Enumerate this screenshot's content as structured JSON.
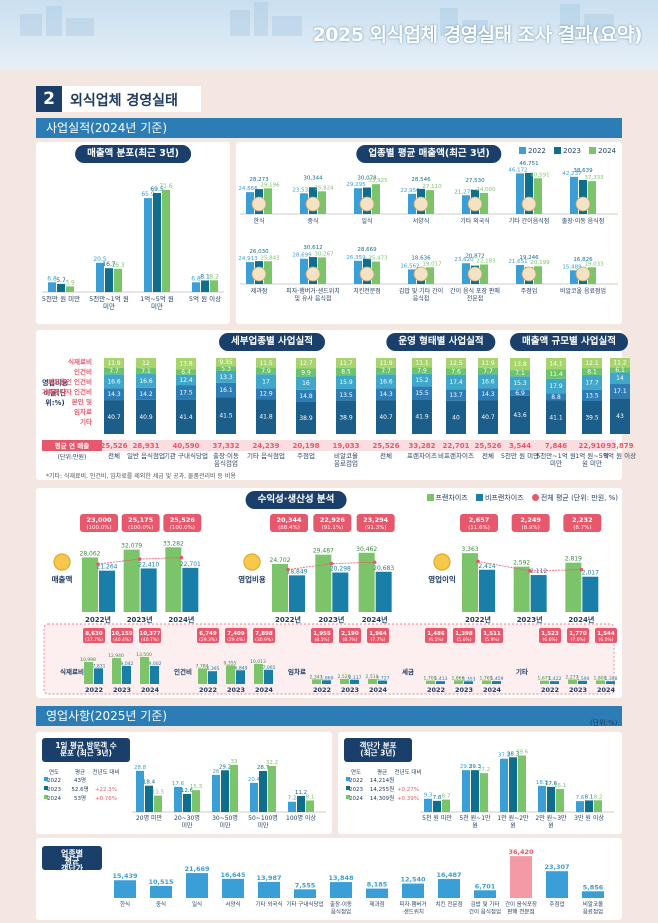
{
  "header": {
    "title": "2025 외식업체 경영실태 조사 결과(요약)"
  },
  "section": {
    "num": "2",
    "title": "외식업체 경영실태"
  },
  "band1": "사업실적(2024년 기준)",
  "band2": "영업사항(2025년 기준)",
  "unit_pct": "(단위:%)",
  "colors": {
    "y2022": "#3a9fd6",
    "y2023": "#0f6e8c",
    "y2024": "#7cc46a",
    "franchise": "#7cc46a",
    "nonfranchise": "#1a7fa8",
    "accent": "#e8586c",
    "navy": "#1b3f6b"
  },
  "chart_data": [
    {
      "id": "sales_dist",
      "type": "bar",
      "title": "매출액 분포(최근 3년)",
      "categories": [
        "5천만 원 미만",
        "5천만~1억 원 미만",
        "1억~5억 원 미만",
        "5억 원 이상"
      ],
      "series": [
        {
          "name": "2022",
          "values": [
            6.8,
            20.5,
            65.9,
            6.8
          ]
        },
        {
          "name": "2023",
          "values": [
            5.7,
            16.7,
            69.5,
            8.1
          ]
        },
        {
          "name": "2024",
          "values": [
            3.9,
            16.3,
            71.6,
            8.2
          ]
        }
      ],
      "ylim": [
        0,
        80
      ]
    },
    {
      "id": "sector_sales",
      "type": "bar",
      "title": "업종별 평균 매출액(최근 3년)",
      "legend": [
        "2022",
        "2023",
        "2024"
      ],
      "categories": [
        "한식",
        "중식",
        "일식",
        "서양식",
        "기타 외국식",
        "기타 간이음식점",
        "출장·이동 음식점",
        "제과점",
        "피자·햄버거·샌드위치 및 유사 음식점",
        "치킨전문점",
        "김밥 및 기타 간이 음식점",
        "간이 음식 포장 판매 전문점",
        "주점업",
        "비알코올 음료점업"
      ],
      "series": [
        {
          "name": "2022",
          "values": [
            24866,
            23532,
            29295,
            22950,
            21279,
            46172,
            42237,
            24913,
            28699,
            26359,
            16562,
            23620,
            21651,
            15489
          ]
        },
        {
          "name": "2023",
          "values": [
            28273,
            30344,
            30078,
            28546,
            27530,
            46751,
            38639,
            26030,
            30612,
            28669,
            18636,
            20872,
            19246,
            16826
          ]
        },
        {
          "name": "2024",
          "values": [
            29196,
            25824,
            33925,
            27110,
            24000,
            40591,
            37333,
            25843,
            30267,
            25473,
            19017,
            22183,
            20199,
            19033
          ]
        }
      ]
    },
    {
      "id": "cost_ratio",
      "type": "bar",
      "stacked": true,
      "title": "세부업종별 사업실적",
      "ylabel": "영업비용 비율(단위:%)",
      "segments": [
        "식재료비",
        "인건비",
        "피고용인 인건비",
        "가족종사자 인건비",
        "본인 및",
        "임차료",
        "기타"
      ],
      "groups": [
        {
          "title": "",
          "categories": [
            "전체"
          ],
          "stack": [
            [
              40.7,
              14.3,
              16.6,
              7.7,
              11.9
            ]
          ],
          "annual": [
            "25,526"
          ]
        },
        {
          "title": "세부업종별 사업실적",
          "categories": [
            "일반 음식점업",
            "기관 구내식당업",
            "출장·이동 음식점업",
            "기타 음식점업",
            "주점업",
            "비알코올 음료점업"
          ],
          "stack": [
            [
              40.9,
              14.2,
              16.6,
              7.1,
              12.0
            ],
            [
              41.4,
              17.5,
              12.4,
              6.4,
              13.8
            ],
            [
              41.5,
              16.1,
              13.3,
              5.3,
              9.35
            ],
            [
              41.8,
              12.9,
              17.0,
              7.9,
              11.5
            ],
            [
              38.9,
              14.8,
              16.0,
              9.9,
              12.7
            ],
            [
              38.9,
              13.5,
              15.9,
              8.5,
              11.7
            ]
          ],
          "annual": [
            "28,931",
            "40,590",
            "37,332",
            "24,239",
            "20,198",
            "19,033"
          ]
        },
        {
          "title": "운영 형태별 사업실적",
          "categories": [
            "전체",
            "프랜차이즈",
            "비프랜차이즈"
          ],
          "stack": [
            [
              40.7,
              14.3,
              16.6,
              7.7,
              11.9
            ],
            [
              41.9,
              15.5,
              15.2,
              7.9,
              11.1
            ],
            [
              40.0,
              13.7,
              17.4,
              7.6,
              12.5
            ]
          ],
          "annual": [
            "25,526",
            "33,282",
            "22,701"
          ]
        },
        {
          "title": "매출액 규모별 사업실적",
          "categories": [
            "전체",
            "5천만 원 미만",
            "5천만~1억 원 미만",
            "1억 원~5억 원 미만",
            "5억 원 이상"
          ],
          "stack": [
            [
              40.7,
              14.3,
              16.6,
              7.7,
              11.9
            ],
            [
              43.6,
              6.9,
              15.3,
              7.1,
              13.8
            ],
            [
              41.1,
              8.8,
              17.9,
              11.4,
              14.1
            ],
            [
              39.5,
              13.5,
              17.7,
              8.1,
              12.1
            ],
            [
              43.0,
              17.1,
              14.0,
              6.1,
              11.2
            ]
          ],
          "annual": [
            "25,526",
            "3,544",
            "7,846",
            "22,910",
            "93,879"
          ]
        }
      ],
      "row_label": "평균 연 매출",
      "row_unit": "(단위:만원)"
    },
    {
      "id": "profit",
      "type": "bar",
      "title": "수익성·생산성 분석",
      "legend": [
        "프랜차이즈",
        "비프랜차이즈",
        "전체 평균",
        "(단위: 만원, %)"
      ],
      "panels": [
        {
          "name": "매출액",
          "x": [
            "2022년",
            "2023년",
            "2024년"
          ],
          "franchise": [
            28062,
            32079,
            33282
          ],
          "nonfranchise": [
            21264,
            22410,
            22701
          ],
          "avg": [
            "23,000",
            "25,175",
            "25,526"
          ],
          "avg_pct": [
            "(100.0%)",
            "(100.0%)",
            "(100.0%)"
          ]
        },
        {
          "name": "영업비용",
          "x": [
            "2022년",
            "2023년",
            "2024년"
          ],
          "franchise": [
            24702,
            29487,
            30462
          ],
          "nonfranchise": [
            18849,
            20298,
            20683
          ],
          "avg": [
            "20,344",
            "22,926",
            "23,294"
          ],
          "avg_pct": [
            "(88.4%)",
            "(91.1%)",
            "(91.3%)"
          ]
        },
        {
          "name": "영업이익",
          "x": [
            "2022년",
            "2023년",
            "2024년"
          ],
          "franchise": [
            3363,
            2592,
            2819
          ],
          "nonfranchise": [
            2414,
            2112,
            2017
          ],
          "avg": [
            "2,657",
            "2,249",
            "2,232"
          ],
          "avg_pct": [
            "(11.6%)",
            "(8.9%)",
            "(8.7%)"
          ]
        }
      ]
    },
    {
      "id": "cost_detail",
      "type": "bar",
      "panels": [
        {
          "name": "식재료비",
          "x": [
            "2022",
            "2023",
            "2024"
          ],
          "franchise": [
            10998,
            12940,
            13500
          ],
          "nonfranchise": [
            7831,
            9042,
            9002
          ],
          "avg": [
            "8,630",
            "10,159",
            "10,377"
          ],
          "avg_pct": [
            "(37.7%)",
            "(40.4%)",
            "(40.7%)"
          ]
        },
        {
          "name": "인건비",
          "x": [
            "2022",
            "2023",
            "2024"
          ],
          "franchise": [
            7784,
            9355,
            10013
          ],
          "nonfranchise": [
            6395,
            6849,
            7065
          ],
          "avg": [
            "6,749",
            "7,409",
            "7,898"
          ],
          "avg_pct": [
            "(29.3%)",
            "(29.4%)",
            "(30.9%)"
          ]
        },
        {
          "name": "임차료",
          "x": [
            "2022",
            "2023",
            "2024"
          ],
          "franchise": [
            2347,
            2526,
            2510
          ],
          "nonfranchise": [
            1860,
            2117,
            1727
          ],
          "avg": [
            "1,955",
            "2,190",
            "1,964"
          ],
          "avg_pct": [
            "(8.5%)",
            "(8.7%)",
            "(7.7%)"
          ]
        },
        {
          "name": "세금",
          "x": [
            "2022",
            "2023",
            "2024"
          ],
          "franchise": [
            1700,
            1866,
            1765
          ],
          "nonfranchise": [
            1413,
            1353,
            1459
          ],
          "avg": [
            "1,486",
            "1,398",
            "1,511"
          ],
          "avg_pct": [
            "(6.5%)",
            "(5.6%)",
            "(5.9%)"
          ]
        },
        {
          "name": "기타",
          "x": [
            "2022",
            "2023",
            "2024"
          ],
          "franchise": [
            1671,
            2277,
            1800
          ],
          "nonfranchise": [
            1422,
            1590,
            1398
          ],
          "avg": [
            "1,523",
            "1,770",
            "1,544"
          ],
          "avg_pct": [
            "(6.6%)",
            "(7.0%)",
            "(6.0%)"
          ]
        }
      ]
    },
    {
      "id": "visitors",
      "type": "bar",
      "title": "1일 평균 방문객 수 분포 (최근 3년)",
      "categories": [
        "20명 미만",
        "20~30명 미만",
        "30~50명 미만",
        "50~100명 미만",
        "100명 이상"
      ],
      "series": [
        {
          "name": "2022",
          "values": [
            28.8,
            17.6,
            26.0,
            20.4,
            7.2
          ]
        },
        {
          "name": "2023",
          "values": [
            18.4,
            12.6,
            29.2,
            28.7,
            11.2
          ]
        },
        {
          "name": "2024",
          "values": [
            11.5,
            15.3,
            33.0,
            32.2,
            8.1
          ]
        }
      ],
      "table": {
        "head": [
          "연도",
          "평균",
          "전년도 대비"
        ],
        "rows": [
          [
            "2022",
            "43명",
            ""
          ],
          [
            "2023",
            "52.6명",
            "+22.3%"
          ],
          [
            "2024",
            "53명",
            "+0.76%"
          ]
        ]
      }
    },
    {
      "id": "ticket",
      "type": "bar",
      "title": "객단가 분포 (최근 3년)",
      "categories": [
        "5천 원 미만",
        "5천 원~1만 원",
        "1만 원~2만 원",
        "2만 원~3만 원",
        "3만 원 이상"
      ],
      "series": [
        {
          "name": "2022",
          "values": [
            9.3,
            29.3,
            37.3,
            18.3,
            7.6
          ]
        },
        {
          "name": "2023",
          "values": [
            7.8,
            29.3,
            38.3,
            17.6,
            8.1
          ]
        },
        {
          "name": "2024",
          "values": [
            8.7,
            27.2,
            39.6,
            16.1,
            8.2
          ]
        }
      ],
      "table": {
        "head": [
          "연도",
          "평균",
          "전년도 대비"
        ],
        "rows": [
          [
            "2022",
            "14,214원",
            ""
          ],
          [
            "2023",
            "14,255원",
            "+0.27%"
          ],
          [
            "2024",
            "14,309원",
            "+0.39%"
          ]
        ]
      }
    },
    {
      "id": "sector_ticket",
      "type": "bar",
      "title": "업종별 평균 객단가",
      "categories": [
        "한식",
        "중식",
        "일식",
        "서양식",
        "기타 외국식",
        "기타 구내식당업",
        "출장·이동 음식점업",
        "제과점",
        "피자·햄버거 ·샌드위치",
        "치킨 전문점",
        "김밥 및 기타 간이 음식점업",
        "간이 음식포장 판매 전문점",
        "주점업",
        "비알코올 음료점업"
      ],
      "values": [
        15439,
        10515,
        21669,
        16645,
        13987,
        7555,
        13848,
        8185,
        12540,
        16487,
        6701,
        36420,
        23307,
        5856
      ]
    }
  ],
  "note": "*기타: 식재료비, 인건비, 임차료를 제외한 세금 및 공과, 물품관리비 등 비용"
}
